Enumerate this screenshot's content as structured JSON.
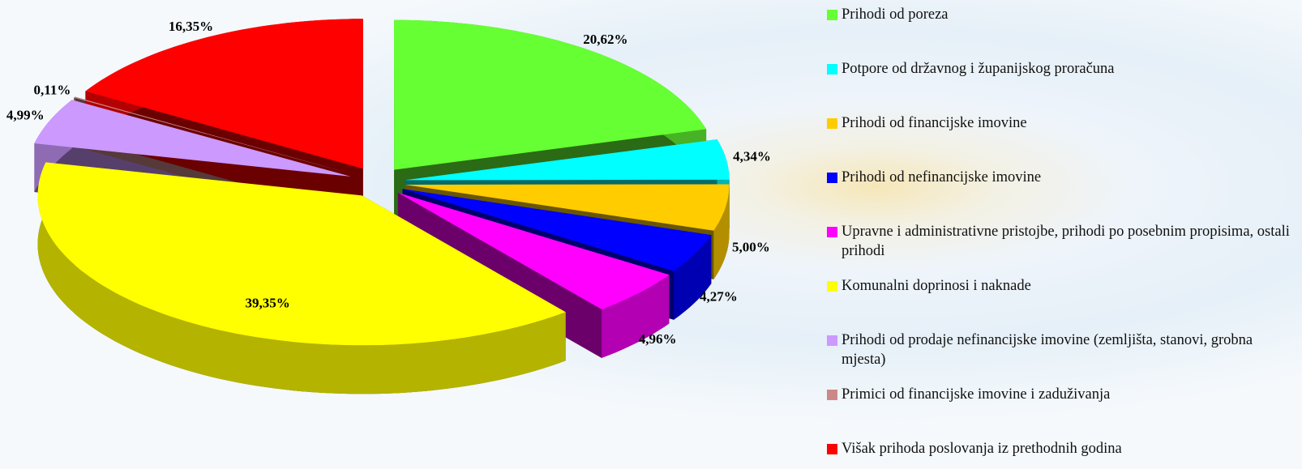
{
  "chart_data": {
    "type": "pie",
    "categories": [
      "Prihodi od poreza",
      "Potpore od državnog i županijskog proračuna",
      "Prihodi od  financijske imovine",
      "Prihodi od nefinancijske imovine",
      "Upravne i administrativne pristojbe, prihodi po posebnim propisima, ostali prihodi",
      "Komunalni doprinosi i naknade",
      "Prihodi od prodaje nefinancijske imovine (zemljišta, stanovi, grobna mjesta)",
      "Primici od financijske imovine i zaduživanja",
      "Višak prihoda poslovanja iz prethodnih godina"
    ],
    "values": [
      20.62,
      4.34,
      5.0,
      4.27,
      4.96,
      39.35,
      4.99,
      0.11,
      16.35
    ],
    "value_labels": [
      "20,62%",
      "4,34%",
      "5,00%",
      "4,27%",
      "4,96%",
      "39,35%",
      "4,99%",
      "0,11%",
      "16,35%"
    ],
    "colors": [
      "#66ff33",
      "#00ffff",
      "#ffcc00",
      "#0000ff",
      "#ff00ff",
      "#ffff00",
      "#cc99ff",
      "#cc8888",
      "#ff0000"
    ],
    "legend": "right"
  }
}
